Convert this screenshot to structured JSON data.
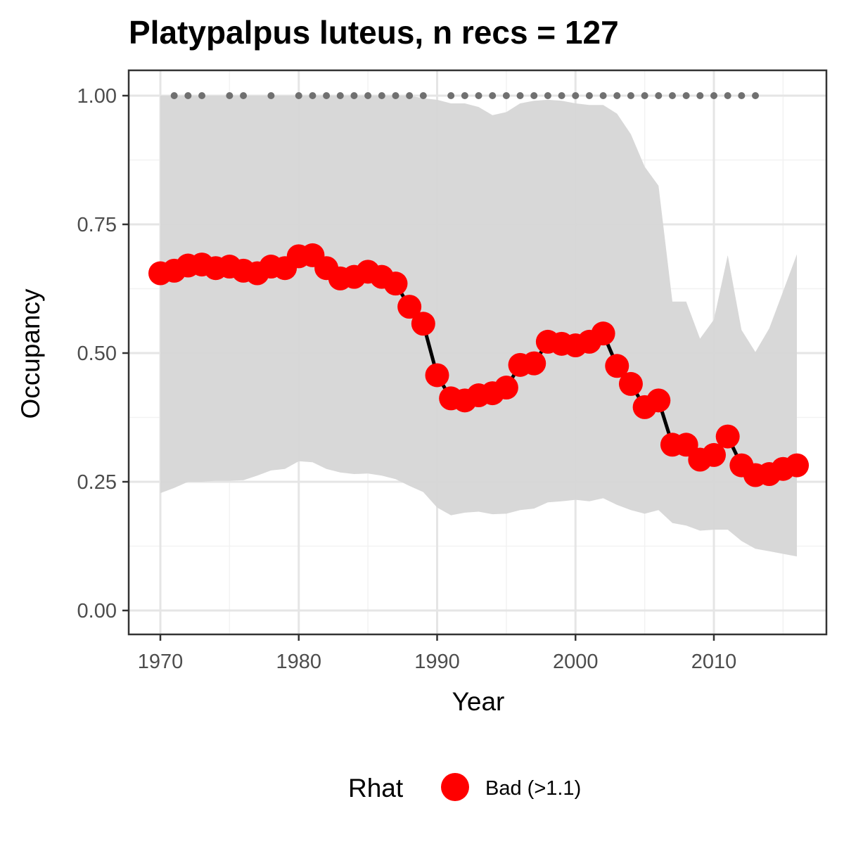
{
  "chart_data": {
    "type": "line",
    "title": "Platypalpus luteus, n recs = 127",
    "xlabel": "Year",
    "ylabel": "Occupancy",
    "xlim": [
      1967.7,
      1918.0
    ],
    "ylim": [
      -0.045,
      1.045
    ],
    "x_ticks": [
      1970,
      1980,
      1990,
      2000,
      2010
    ],
    "x_tick_labels": [
      "1970",
      "1980",
      "1990",
      "2000",
      "2010"
    ],
    "y_ticks": [
      0,
      0.25,
      0.5,
      0.75,
      1.0
    ],
    "y_tick_labels": [
      "0.00",
      "0.25",
      "0.50",
      "0.75",
      "1.00"
    ],
    "grid": true,
    "colors": {
      "ribbon": "#d6d6d6",
      "line": "#000000",
      "point": "#ff0000",
      "record_dot": "#707070",
      "grid_major": "#e5e5e5",
      "grid_minor": "#f2f2f2",
      "panel_border": "#333333"
    },
    "series": [
      {
        "x": [
          1970,
          1971,
          1972,
          1973,
          1974,
          1975,
          1976,
          1977,
          1978,
          1979,
          1980,
          1981,
          1982,
          1983,
          1984,
          1985,
          1986,
          1987,
          1988,
          1989,
          1990,
          1991,
          1992,
          1993,
          1994,
          1995,
          1996,
          1997,
          1998,
          1999,
          2000,
          2001,
          2002,
          2003,
          2004,
          2005,
          2006,
          2007,
          2008,
          2009,
          2010,
          2011,
          2012,
          2013,
          2014,
          2015,
          2016
        ],
        "values": [
          0.655,
          0.66,
          0.67,
          0.672,
          0.665,
          0.668,
          0.66,
          0.655,
          0.668,
          0.665,
          0.688,
          0.69,
          0.665,
          0.645,
          0.648,
          0.658,
          0.648,
          0.635,
          0.59,
          0.557,
          0.457,
          0.412,
          0.408,
          0.418,
          0.422,
          0.433,
          0.477,
          0.48,
          0.522,
          0.518,
          0.515,
          0.522,
          0.538,
          0.475,
          0.44,
          0.395,
          0.408,
          0.322,
          0.322,
          0.293,
          0.302,
          0.338,
          0.282,
          0.263,
          0.265,
          0.275,
          0.282
        ]
      }
    ],
    "ribbon": {
      "x": [
        1970,
        1971,
        1972,
        1973,
        1974,
        1975,
        1976,
        1977,
        1978,
        1979,
        1980,
        1981,
        1982,
        1983,
        1984,
        1985,
        1986,
        1987,
        1988,
        1989,
        1990,
        1991,
        1992,
        1993,
        1994,
        1995,
        1996,
        1997,
        1998,
        1999,
        2000,
        2001,
        2002,
        2003,
        2004,
        2005,
        2006,
        2007,
        2008,
        2009,
        2010,
        2011,
        2012,
        2013,
        2014,
        2015,
        2016
      ],
      "lower": [
        0.228,
        0.238,
        0.25,
        0.25,
        0.252,
        0.252,
        0.253,
        0.262,
        0.272,
        0.275,
        0.29,
        0.288,
        0.275,
        0.268,
        0.265,
        0.266,
        0.262,
        0.255,
        0.242,
        0.23,
        0.2,
        0.185,
        0.19,
        0.192,
        0.187,
        0.188,
        0.195,
        0.198,
        0.21,
        0.212,
        0.215,
        0.212,
        0.218,
        0.205,
        0.195,
        0.188,
        0.195,
        0.17,
        0.165,
        0.155,
        0.157,
        0.157,
        0.135,
        0.12,
        0.115,
        0.11,
        0.105
      ],
      "upper": [
        1.0,
        1.0,
        1.0,
        1.0,
        1.0,
        1.0,
        1.0,
        1.0,
        1.0,
        1.0,
        1.0,
        1.0,
        1.0,
        1.0,
        1.0,
        1.0,
        1.0,
        1.0,
        1.0,
        0.995,
        0.992,
        0.985,
        0.985,
        0.978,
        0.962,
        0.968,
        0.985,
        0.99,
        0.992,
        0.99,
        0.985,
        0.982,
        0.982,
        0.965,
        0.925,
        0.862,
        0.825,
        0.6,
        0.6,
        0.528,
        0.565,
        0.69,
        0.545,
        0.502,
        0.548,
        0.62,
        0.692
      ]
    },
    "record_years": [
      1971,
      1972,
      1973,
      1975,
      1976,
      1978,
      1980,
      1981,
      1982,
      1983,
      1984,
      1985,
      1986,
      1987,
      1988,
      1989,
      1991,
      1992,
      1993,
      1994,
      1995,
      1996,
      1997,
      1998,
      1999,
      2000,
      2001,
      2002,
      2003,
      2004,
      2005,
      2006,
      2007,
      2008,
      2009,
      2010,
      2011,
      2012,
      2013
    ],
    "legend": {
      "title": "Rhat",
      "entries": [
        {
          "label": "Bad (>1.1)",
          "color": "#ff0000"
        }
      ],
      "position": "bottom"
    }
  }
}
